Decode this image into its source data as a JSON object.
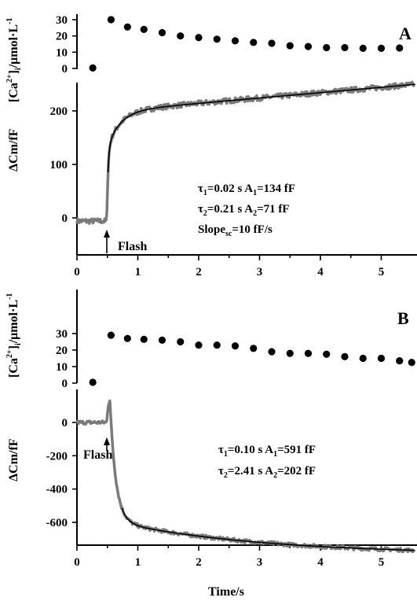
{
  "chart_data": [
    {
      "panel": "A",
      "type": "scatter",
      "ylabel": "[Ca2+]i/μmol·L-1",
      "ylabel_parts": {
        "a": "[Ca",
        "sup1": "2+",
        "b": "]",
        "sub": "i",
        "c": "/μmol·L",
        "sup2": "-1"
      },
      "yticks": [
        "0",
        "10",
        "20",
        "30"
      ],
      "ylim": [
        0,
        32
      ],
      "xlim": [
        0,
        5.5
      ],
      "points": [
        {
          "x": 0.26,
          "y": 0.3
        },
        {
          "x": 0.56,
          "y": 30
        },
        {
          "x": 0.83,
          "y": 25.5
        },
        {
          "x": 1.1,
          "y": 24
        },
        {
          "x": 1.4,
          "y": 22
        },
        {
          "x": 1.7,
          "y": 20
        },
        {
          "x": 2.0,
          "y": 19
        },
        {
          "x": 2.3,
          "y": 18
        },
        {
          "x": 2.6,
          "y": 17
        },
        {
          "x": 2.9,
          "y": 16
        },
        {
          "x": 3.2,
          "y": 15.5
        },
        {
          "x": 3.5,
          "y": 14
        },
        {
          "x": 3.8,
          "y": 13.5
        },
        {
          "x": 4.1,
          "y": 12.8
        },
        {
          "x": 4.4,
          "y": 12.8
        },
        {
          "x": 4.7,
          "y": 12.4
        },
        {
          "x": 5.0,
          "y": 12.4
        },
        {
          "x": 5.3,
          "y": 12.6
        }
      ]
    },
    {
      "panel": "A",
      "type": "line",
      "ylabel": "ΔCm/fF",
      "yticks": [
        "0",
        "100",
        "200"
      ],
      "ylim": [
        -85,
        270
      ],
      "xlim": [
        0,
        5.5
      ],
      "baseline": -6,
      "flash_time": 0.49,
      "fit": {
        "tau1": 0.02,
        "A1": 134,
        "tau2": 0.21,
        "A2": 71,
        "slope": 10
      },
      "annotations": {
        "line1_tau": "τ",
        "line1_sub": "1",
        "line1_rest": "=0.02 s   A",
        "line1_sub2": "1",
        "line1_end": "=134 fF",
        "line2_tau": "τ",
        "line2_sub": "2",
        "line2_rest": "=0.21 s   A",
        "line2_sub2": "2",
        "line2_end": "=71 fF",
        "line3_a": "Slope",
        "line3_sub": "sc",
        "line3_b": "=10 fF/s"
      },
      "flash_label": "Flash",
      "panel_label": "A"
    },
    {
      "panel": "B",
      "type": "scatter",
      "ylabel": "[Ca2+]i/μmol·L-1",
      "ylabel_parts": {
        "a": "[Ca",
        "sup1": "2+",
        "b": "]",
        "sub": "i",
        "c": "/μmol·L",
        "sup2": "-1"
      },
      "yticks": [
        "0",
        "10",
        "20",
        "30"
      ],
      "ylim": [
        0,
        32
      ],
      "xlim": [
        0,
        5.5
      ],
      "points": [
        {
          "x": 0.26,
          "y": 0.5
        },
        {
          "x": 0.56,
          "y": 29
        },
        {
          "x": 0.83,
          "y": 27
        },
        {
          "x": 1.1,
          "y": 26.5
        },
        {
          "x": 1.4,
          "y": 26
        },
        {
          "x": 1.7,
          "y": 25
        },
        {
          "x": 2.0,
          "y": 23
        },
        {
          "x": 2.3,
          "y": 23
        },
        {
          "x": 2.6,
          "y": 22.5
        },
        {
          "x": 2.9,
          "y": 21
        },
        {
          "x": 3.2,
          "y": 19
        },
        {
          "x": 3.5,
          "y": 18
        },
        {
          "x": 3.8,
          "y": 18
        },
        {
          "x": 4.1,
          "y": 17.5
        },
        {
          "x": 4.4,
          "y": 16
        },
        {
          "x": 4.7,
          "y": 15
        },
        {
          "x": 5.0,
          "y": 15
        },
        {
          "x": 5.3,
          "y": 13.5
        },
        {
          "x": 5.5,
          "y": 12.5
        }
      ]
    },
    {
      "panel": "B",
      "type": "line",
      "ylabel": "ΔCm/fF",
      "xlabel": "Time/s",
      "yticks": [
        "-600",
        "-400",
        "-200",
        "0"
      ],
      "xticks": [
        "0",
        "1",
        "2",
        "3",
        "4",
        "5"
      ],
      "ylim": [
        -740,
        150
      ],
      "xlim": [
        0,
        5.5
      ],
      "baseline": 0,
      "flash_time": 0.49,
      "peak": 145,
      "fit": {
        "tau1": 0.1,
        "A1": 591,
        "tau2": 2.41,
        "A2": 202
      },
      "annotations": {
        "line1_tau": "τ",
        "line1_sub": "1",
        "line1_rest": "=0.10 s   A",
        "line1_sub2": "1",
        "line1_end": "=591 fF",
        "line2_tau": "τ",
        "line2_sub": "2",
        "line2_rest": "=2.41 s   A",
        "line2_sub2": "2",
        "line2_end": "=202 fF"
      },
      "flash_label": "Flash",
      "panel_label": "B"
    }
  ],
  "x_axis": {
    "ticks": [
      "0",
      "1",
      "2",
      "3",
      "4",
      "5"
    ],
    "label": "Time/s"
  },
  "colors": {
    "trace": "#7a7a7a",
    "fit": "#000000",
    "dots": "#000000"
  }
}
